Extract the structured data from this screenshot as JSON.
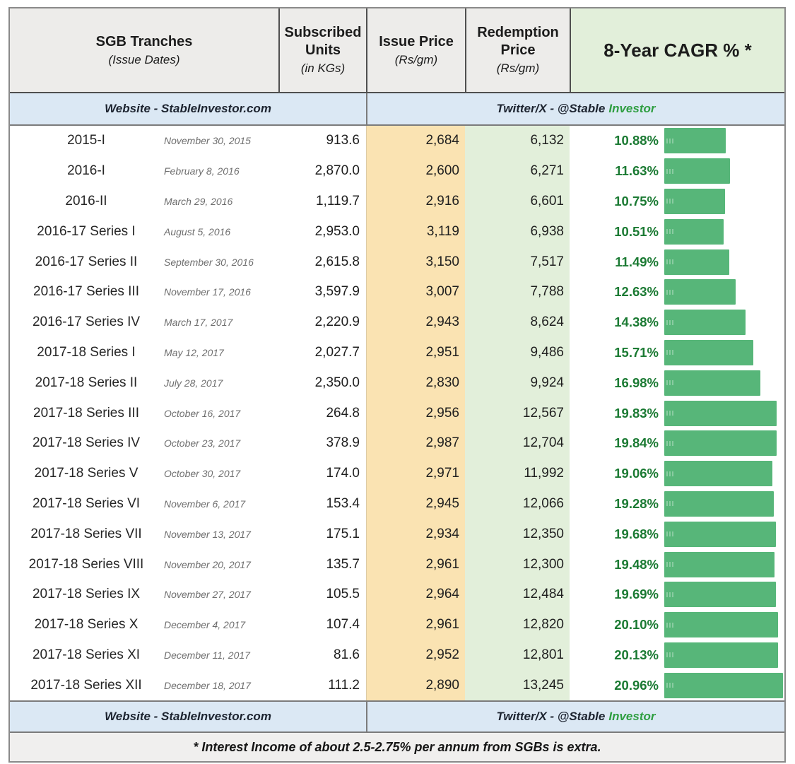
{
  "header": {
    "tranches_title": "SGB Tranches",
    "tranches_sub": "(Issue Dates)",
    "units_title": "Subscribed Units",
    "units_sub": "(in KGs)",
    "issue_title": "Issue Price",
    "issue_sub": "(Rs/gm)",
    "redemption_title": "Redemption Price",
    "redemption_sub": "(Rs/gm)",
    "cagr_title": "8-Year CAGR % *"
  },
  "banner": {
    "website": "Website - StableInvestor.com",
    "twitter_prefix": "Twitter/X - @Stable",
    "twitter_suffix": "Investor"
  },
  "footer_note": "* Interest Income of about 2.5-2.75% per annum from SGBs is extra.",
  "colors": {
    "header_bg": "#edecea",
    "cagr_header_bg": "#e2efda",
    "banner_bg": "#dbe8f4",
    "issue_col_bg": "#fae3b2",
    "redemption_col_bg": "#e2efda",
    "bar_green": "#57b679",
    "cagr_text_green": "#1b7a33",
    "brand_green": "#2f9e41"
  },
  "chart_data": {
    "type": "table",
    "title": "SGB Tranches - 8-Year CAGR",
    "columns": [
      "SGB Tranches",
      "Issue Dates",
      "Subscribed Units (in KGs)",
      "Issue Price (Rs/gm)",
      "Redemption Price (Rs/gm)",
      "8-Year CAGR % *"
    ],
    "embedded_bar_column": "8-Year CAGR % *",
    "bar_scale_max": 20.96,
    "rows": [
      {
        "tranche": "2015-I",
        "date": "November 30, 2015",
        "units": "913.6",
        "issue": "2,684",
        "redemption": "6,132",
        "cagr_label": "10.88%",
        "cagr": 10.88
      },
      {
        "tranche": "2016-I",
        "date": "February 8, 2016",
        "units": "2,870.0",
        "issue": "2,600",
        "redemption": "6,271",
        "cagr_label": "11.63%",
        "cagr": 11.63
      },
      {
        "tranche": "2016-II",
        "date": "March 29, 2016",
        "units": "1,119.7",
        "issue": "2,916",
        "redemption": "6,601",
        "cagr_label": "10.75%",
        "cagr": 10.75
      },
      {
        "tranche": "2016-17 Series I",
        "date": "August 5, 2016",
        "units": "2,953.0",
        "issue": "3,119",
        "redemption": "6,938",
        "cagr_label": "10.51%",
        "cagr": 10.51
      },
      {
        "tranche": "2016-17 Series II",
        "date": "September 30, 2016",
        "units": "2,615.8",
        "issue": "3,150",
        "redemption": "7,517",
        "cagr_label": "11.49%",
        "cagr": 11.49
      },
      {
        "tranche": "2016-17 Series III",
        "date": "November 17, 2016",
        "units": "3,597.9",
        "issue": "3,007",
        "redemption": "7,788",
        "cagr_label": "12.63%",
        "cagr": 12.63
      },
      {
        "tranche": "2016-17 Series IV",
        "date": "March 17, 2017",
        "units": "2,220.9",
        "issue": "2,943",
        "redemption": "8,624",
        "cagr_label": "14.38%",
        "cagr": 14.38
      },
      {
        "tranche": "2017-18 Series I",
        "date": "May 12, 2017",
        "units": "2,027.7",
        "issue": "2,951",
        "redemption": "9,486",
        "cagr_label": "15.71%",
        "cagr": 15.71
      },
      {
        "tranche": "2017-18 Series II",
        "date": "July 28, 2017",
        "units": "2,350.0",
        "issue": "2,830",
        "redemption": "9,924",
        "cagr_label": "16.98%",
        "cagr": 16.98
      },
      {
        "tranche": "2017-18 Series III",
        "date": "October 16, 2017",
        "units": "264.8",
        "issue": "2,956",
        "redemption": "12,567",
        "cagr_label": "19.83%",
        "cagr": 19.83
      },
      {
        "tranche": "2017-18 Series IV",
        "date": "October 23, 2017",
        "units": "378.9",
        "issue": "2,987",
        "redemption": "12,704",
        "cagr_label": "19.84%",
        "cagr": 19.84
      },
      {
        "tranche": "2017-18 Series V",
        "date": "October 30, 2017",
        "units": "174.0",
        "issue": "2,971",
        "redemption": "11,992",
        "cagr_label": "19.06%",
        "cagr": 19.06
      },
      {
        "tranche": "2017-18 Series VI",
        "date": "November 6, 2017",
        "units": "153.4",
        "issue": "2,945",
        "redemption": "12,066",
        "cagr_label": "19.28%",
        "cagr": 19.28
      },
      {
        "tranche": "2017-18 Series VII",
        "date": "November 13, 2017",
        "units": "175.1",
        "issue": "2,934",
        "redemption": "12,350",
        "cagr_label": "19.68%",
        "cagr": 19.68
      },
      {
        "tranche": "2017-18 Series VIII",
        "date": "November 20, 2017",
        "units": "135.7",
        "issue": "2,961",
        "redemption": "12,300",
        "cagr_label": "19.48%",
        "cagr": 19.48
      },
      {
        "tranche": "2017-18 Series IX",
        "date": "November 27, 2017",
        "units": "105.5",
        "issue": "2,964",
        "redemption": "12,484",
        "cagr_label": "19.69%",
        "cagr": 19.69
      },
      {
        "tranche": "2017-18 Series X",
        "date": "December 4, 2017",
        "units": "107.4",
        "issue": "2,961",
        "redemption": "12,820",
        "cagr_label": "20.10%",
        "cagr": 20.1
      },
      {
        "tranche": "2017-18 Series XI",
        "date": "December 11, 2017",
        "units": "81.6",
        "issue": "2,952",
        "redemption": "12,801",
        "cagr_label": "20.13%",
        "cagr": 20.13
      },
      {
        "tranche": "2017-18 Series XII",
        "date": "December 18, 2017",
        "units": "111.2",
        "issue": "2,890",
        "redemption": "13,245",
        "cagr_label": "20.96%",
        "cagr": 20.96
      }
    ]
  }
}
